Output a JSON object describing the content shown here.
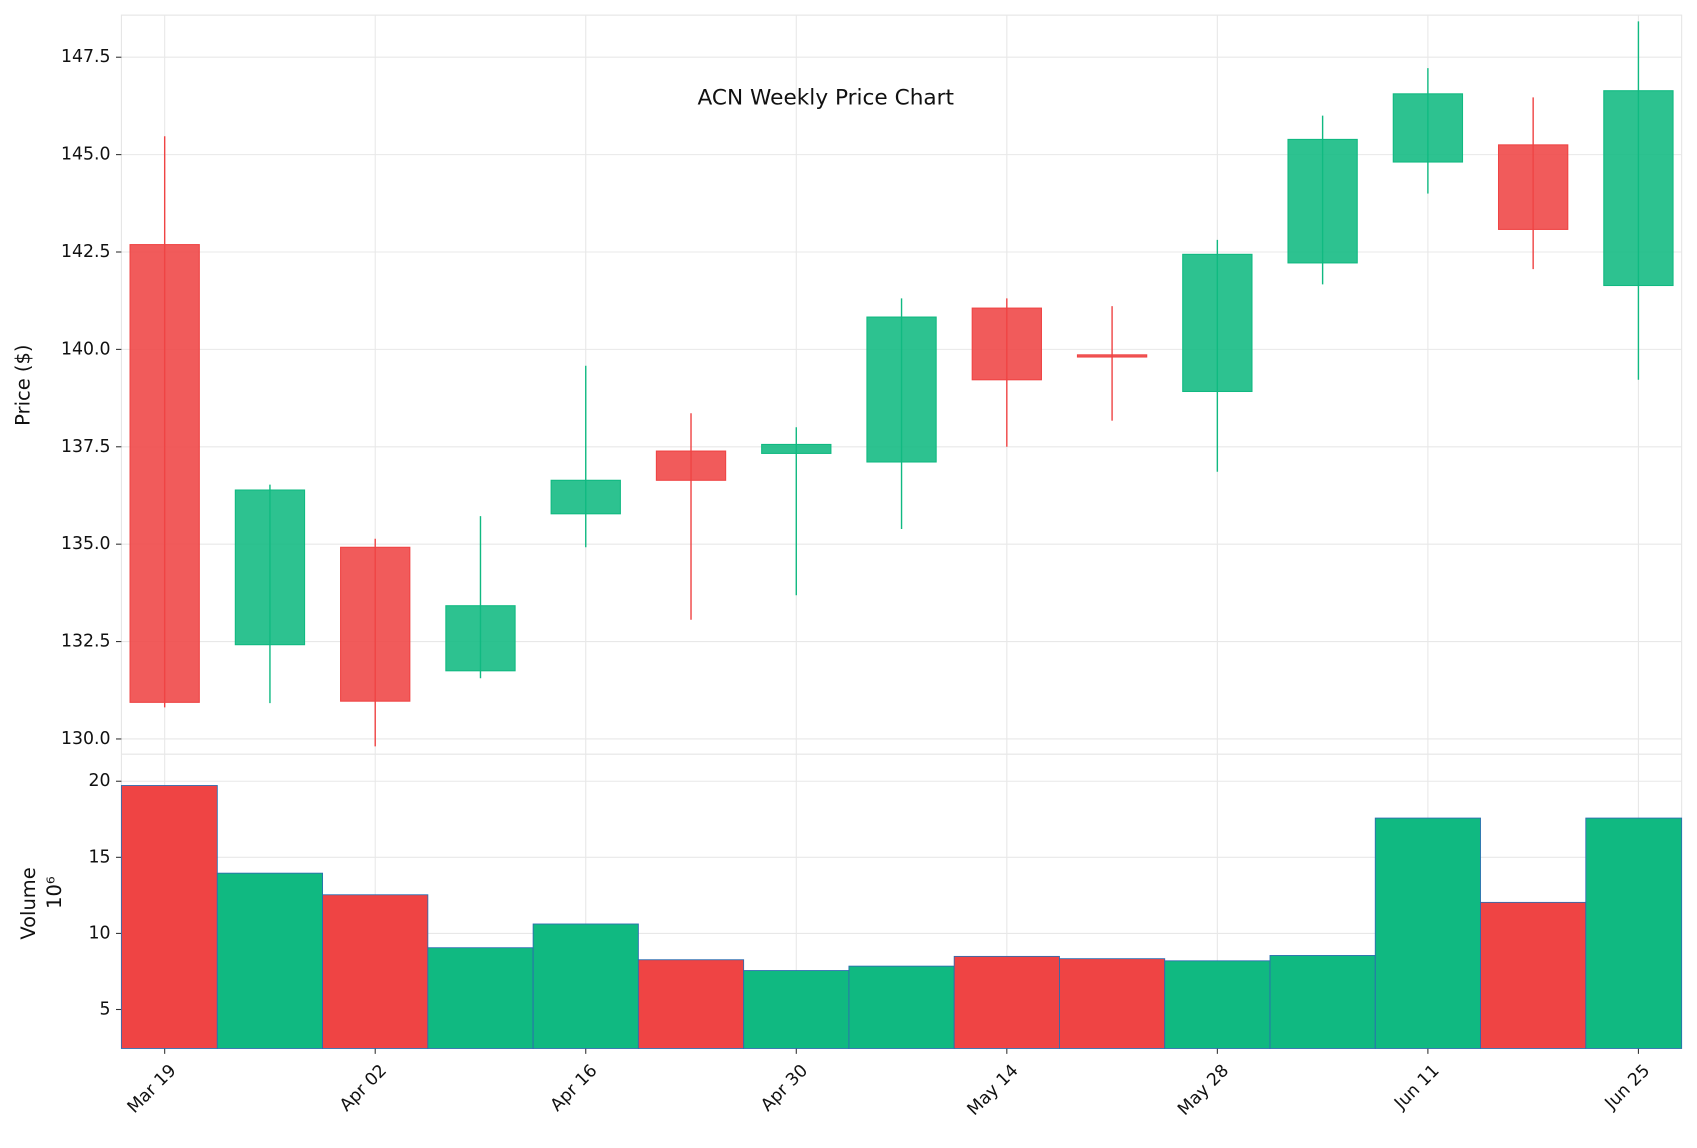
{
  "chart_data": {
    "type": "candlestick",
    "title": "ACN Weekly Price Chart",
    "y_label": "Price ($)",
    "categories": [
      "Mar 19",
      null,
      "Apr 02",
      null,
      "Apr 16",
      null,
      "Apr 30",
      null,
      "May 14",
      null,
      "May 28",
      null,
      "Jun 11",
      null,
      "Jun 25"
    ],
    "open": [
      142.69,
      132.42,
      134.92,
      131.75,
      135.78,
      137.39,
      137.33,
      137.11,
      141.06,
      139.86,
      138.92,
      142.22,
      144.81,
      145.25,
      141.64
    ],
    "high": [
      145.47,
      136.53,
      135.14,
      135.72,
      139.58,
      138.36,
      138.0,
      141.31,
      141.31,
      141.11,
      142.81,
      146.0,
      147.22,
      146.47,
      148.42
    ],
    "low": [
      130.81,
      130.92,
      129.81,
      131.56,
      134.92,
      133.06,
      133.69,
      135.39,
      137.5,
      138.17,
      136.86,
      141.67,
      144.0,
      142.06,
      139.22
    ],
    "close": [
      130.94,
      136.39,
      130.97,
      133.42,
      136.64,
      136.64,
      137.56,
      140.83,
      139.22,
      139.83,
      142.44,
      145.39,
      146.56,
      143.08,
      146.64
    ],
    "up_color": "#10b981",
    "down_color": "#ef4444",
    "ylim": [
      129.61,
      148.58
    ],
    "yticks": [
      {
        "value": 130,
        "label": "130.0"
      },
      {
        "value": 132.5,
        "label": "132.5"
      },
      {
        "value": 135,
        "label": "135.0"
      },
      {
        "value": 137.5,
        "label": "137.5"
      },
      {
        "value": 140,
        "label": "140.0"
      },
      {
        "value": 142.5,
        "label": "142.5"
      },
      {
        "value": 145,
        "label": "145.0"
      },
      {
        "value": 147.5,
        "label": "147.5"
      }
    ],
    "grid": true,
    "volume": {
      "label": "Volume",
      "scale_label": "10⁶",
      "values": [
        19.72,
        13.96,
        12.54,
        9.06,
        10.62,
        8.27,
        7.56,
        7.85,
        8.49,
        8.34,
        8.2,
        8.55,
        17.58,
        12.04,
        17.58
      ],
      "ylim": [
        2.44,
        21.78
      ],
      "yticks": [
        5,
        10,
        15,
        20
      ]
    }
  }
}
